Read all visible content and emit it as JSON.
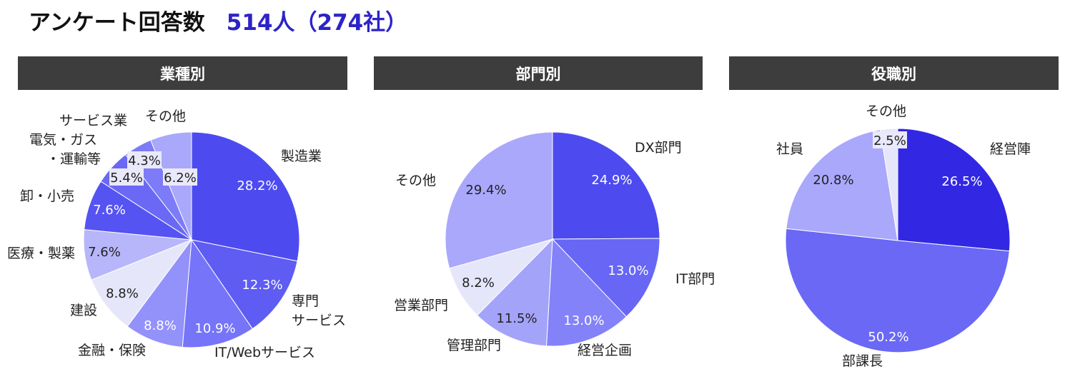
{
  "header": {
    "title": "アンケート回答数",
    "count": "514人（274社）"
  },
  "colors": {
    "accent": "#2d23c8",
    "header_bg": "#3d3d3d"
  },
  "chart_data": [
    {
      "type": "pie",
      "title": "業種別",
      "slices": [
        {
          "label": "製造業",
          "value": 28.2,
          "value_label": "28.2%",
          "color": "#4d4bef"
        },
        {
          "label": "専門\nサービス",
          "value": 12.3,
          "value_label": "12.3%",
          "color": "#5e5cf3"
        },
        {
          "label": "IT/Webサービス",
          "value": 10.9,
          "value_label": "10.9%",
          "color": "#7674f8"
        },
        {
          "label": "金融・保険",
          "value": 8.8,
          "value_label": "8.8%",
          "color": "#9391fa"
        },
        {
          "label": "建設",
          "value": 8.8,
          "value_label": "8.8%",
          "color": "#e6e6fb"
        },
        {
          "label": "医療・製薬",
          "value": 7.6,
          "value_label": "7.6%",
          "color": "#b7b6fb"
        },
        {
          "label": "卸・小売",
          "value": 7.6,
          "value_label": "7.6%",
          "color": "#5553f1"
        },
        {
          "label": "電気・ガス\n・運輸等",
          "value": 5.4,
          "value_label": "5.4%",
          "color": "#6a68f5"
        },
        {
          "label": "サービス業",
          "value": 4.3,
          "value_label": "4.3%",
          "color": "#7d7bf7"
        },
        {
          "label": "その他",
          "value": 6.2,
          "value_label": "6.2%",
          "color": "#a9a8fb"
        }
      ]
    },
    {
      "type": "pie",
      "title": "部門別",
      "slices": [
        {
          "label": "DX部門",
          "value": 24.9,
          "value_label": "24.9%",
          "color": "#4d4bef"
        },
        {
          "label": "IT部門",
          "value": 13.0,
          "value_label": "13.0%",
          "color": "#6866f5"
        },
        {
          "label": "経営企画",
          "value": 13.0,
          "value_label": "13.0%",
          "color": "#8482f8"
        },
        {
          "label": "管理部門",
          "value": 11.5,
          "value_label": "11.5%",
          "color": "#a4a3fa"
        },
        {
          "label": "営業部門",
          "value": 8.2,
          "value_label": "8.2%",
          "color": "#e6e6fb"
        },
        {
          "label": "その他",
          "value": 29.4,
          "value_label": "29.4%",
          "color": "#a9a8fb"
        }
      ]
    },
    {
      "type": "pie",
      "title": "役職別",
      "slices": [
        {
          "label": "経営陣",
          "value": 26.5,
          "value_label": "26.5%",
          "color": "#3228e3"
        },
        {
          "label": "部課長",
          "value": 50.2,
          "value_label": "50.2%",
          "color": "#6a68f5"
        },
        {
          "label": "社員",
          "value": 20.8,
          "value_label": "20.8%",
          "color": "#a9a8fb"
        },
        {
          "label": "その他",
          "value": 2.5,
          "value_label": "2.5%",
          "color": "#e6e6fb"
        }
      ]
    }
  ]
}
